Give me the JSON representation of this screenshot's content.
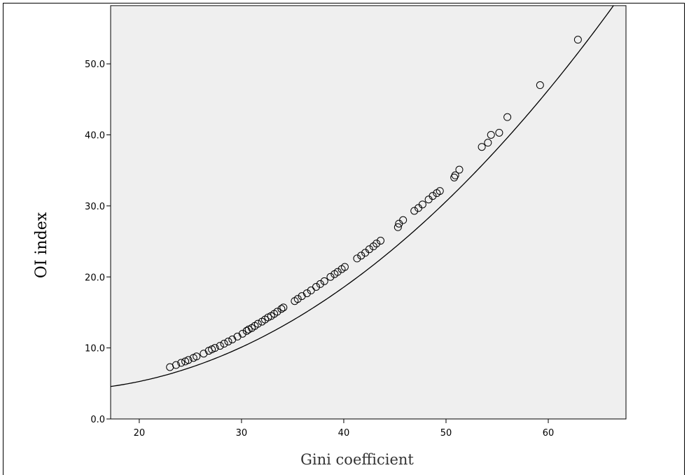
{
  "chart_data": {
    "type": "scatter",
    "title": "",
    "xlabel": "Gini coefficient",
    "ylabel": "OI index",
    "xlim": [
      17.2,
      67.6
    ],
    "ylim": [
      0,
      58.2
    ],
    "x_ticks": [
      20,
      30,
      40,
      50,
      60
    ],
    "y_ticks": [
      0,
      10,
      20,
      30,
      40,
      50
    ],
    "x_tick_labels": [
      "20",
      "30",
      "40",
      "50",
      "60"
    ],
    "y_tick_labels": [
      "0.0",
      "10.0",
      "20.0",
      "30.0",
      "40.0",
      "50.0"
    ],
    "grid": false,
    "plot_background": "#efefef",
    "marker": "open-circle",
    "fit_line": {
      "type": "quadratic",
      "coefficients": [
        6.47,
        -0.4215,
        0.01809
      ]
    },
    "points": [
      [
        23.0,
        7.3
      ],
      [
        23.6,
        7.6
      ],
      [
        24.1,
        7.9
      ],
      [
        24.5,
        8.1
      ],
      [
        24.8,
        8.3
      ],
      [
        25.3,
        8.6
      ],
      [
        25.6,
        8.8
      ],
      [
        26.3,
        9.2
      ],
      [
        26.8,
        9.6
      ],
      [
        27.1,
        9.8
      ],
      [
        27.4,
        10.0
      ],
      [
        27.9,
        10.3
      ],
      [
        28.3,
        10.6
      ],
      [
        28.7,
        10.9
      ],
      [
        29.1,
        11.2
      ],
      [
        29.6,
        11.6
      ],
      [
        30.1,
        12.0
      ],
      [
        30.5,
        12.4
      ],
      [
        30.7,
        12.6
      ],
      [
        31.0,
        12.8
      ],
      [
        31.3,
        13.1
      ],
      [
        31.6,
        13.4
      ],
      [
        32.0,
        13.7
      ],
      [
        32.3,
        14.0
      ],
      [
        32.6,
        14.3
      ],
      [
        32.9,
        14.5
      ],
      [
        33.2,
        14.8
      ],
      [
        33.5,
        15.1
      ],
      [
        33.9,
        15.5
      ],
      [
        34.1,
        15.7
      ],
      [
        35.2,
        16.6
      ],
      [
        35.5,
        16.9
      ],
      [
        35.9,
        17.3
      ],
      [
        36.4,
        17.7
      ],
      [
        36.8,
        18.1
      ],
      [
        37.3,
        18.6
      ],
      [
        37.7,
        19.0
      ],
      [
        38.1,
        19.4
      ],
      [
        38.7,
        20.0
      ],
      [
        39.1,
        20.4
      ],
      [
        39.4,
        20.7
      ],
      [
        39.8,
        21.1
      ],
      [
        40.1,
        21.4
      ],
      [
        41.3,
        22.6
      ],
      [
        41.7,
        23.0
      ],
      [
        42.1,
        23.4
      ],
      [
        42.5,
        23.9
      ],
      [
        42.9,
        24.3
      ],
      [
        43.2,
        24.7
      ],
      [
        43.6,
        25.1
      ],
      [
        45.3,
        27.0
      ],
      [
        45.4,
        27.5
      ],
      [
        45.8,
        28.0
      ],
      [
        46.9,
        29.3
      ],
      [
        47.3,
        29.7
      ],
      [
        47.7,
        30.2
      ],
      [
        48.3,
        30.9
      ],
      [
        48.7,
        31.4
      ],
      [
        49.1,
        31.8
      ],
      [
        49.4,
        32.1
      ],
      [
        50.8,
        34.0
      ],
      [
        50.9,
        34.3
      ],
      [
        51.3,
        35.1
      ],
      [
        53.5,
        38.3
      ],
      [
        54.1,
        38.9
      ],
      [
        54.4,
        40.0
      ],
      [
        55.2,
        40.3
      ],
      [
        56.0,
        42.5
      ],
      [
        59.2,
        47.0
      ],
      [
        62.9,
        53.4
      ]
    ]
  }
}
